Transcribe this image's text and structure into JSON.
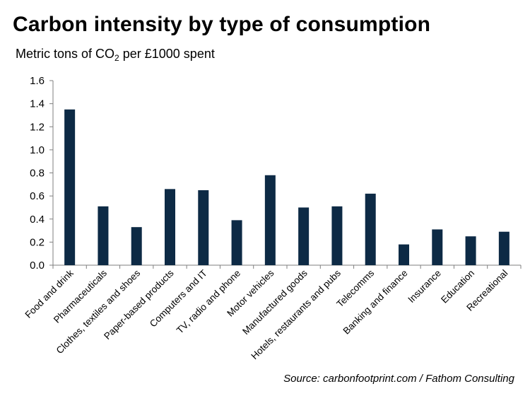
{
  "chart_data": {
    "type": "bar",
    "title": "Carbon intensity by type of consumption",
    "ylabel_pre": "Metric tons of CO",
    "ylabel_sub": "2",
    "ylabel_post": " per £1000 spent",
    "categories": [
      "Food and drink",
      "Pharmaceuticals",
      "Clothes, textiles and shoes",
      "Paper-based products",
      "Computers and IT",
      "TV, radio and phone",
      "Motor vehicles",
      "Manufactured goods",
      "Hotels, restaurants and pubs",
      "Telecomms",
      "Banking and finance",
      "Insurance",
      "Education",
      "Recreational"
    ],
    "values": [
      1.35,
      0.51,
      0.33,
      0.66,
      0.65,
      0.39,
      0.78,
      0.5,
      0.51,
      0.62,
      0.18,
      0.31,
      0.25,
      0.29
    ],
    "ylim": [
      0,
      1.6
    ],
    "yticks": [
      "0.0",
      "0.2",
      "0.4",
      "0.6",
      "0.8",
      "1.0",
      "1.2",
      "1.4",
      "1.6"
    ],
    "grid": false,
    "legend": "none",
    "bar_color": "#0d2a45",
    "source": "Source: carbonfootprint.com / Fathom Consulting"
  }
}
